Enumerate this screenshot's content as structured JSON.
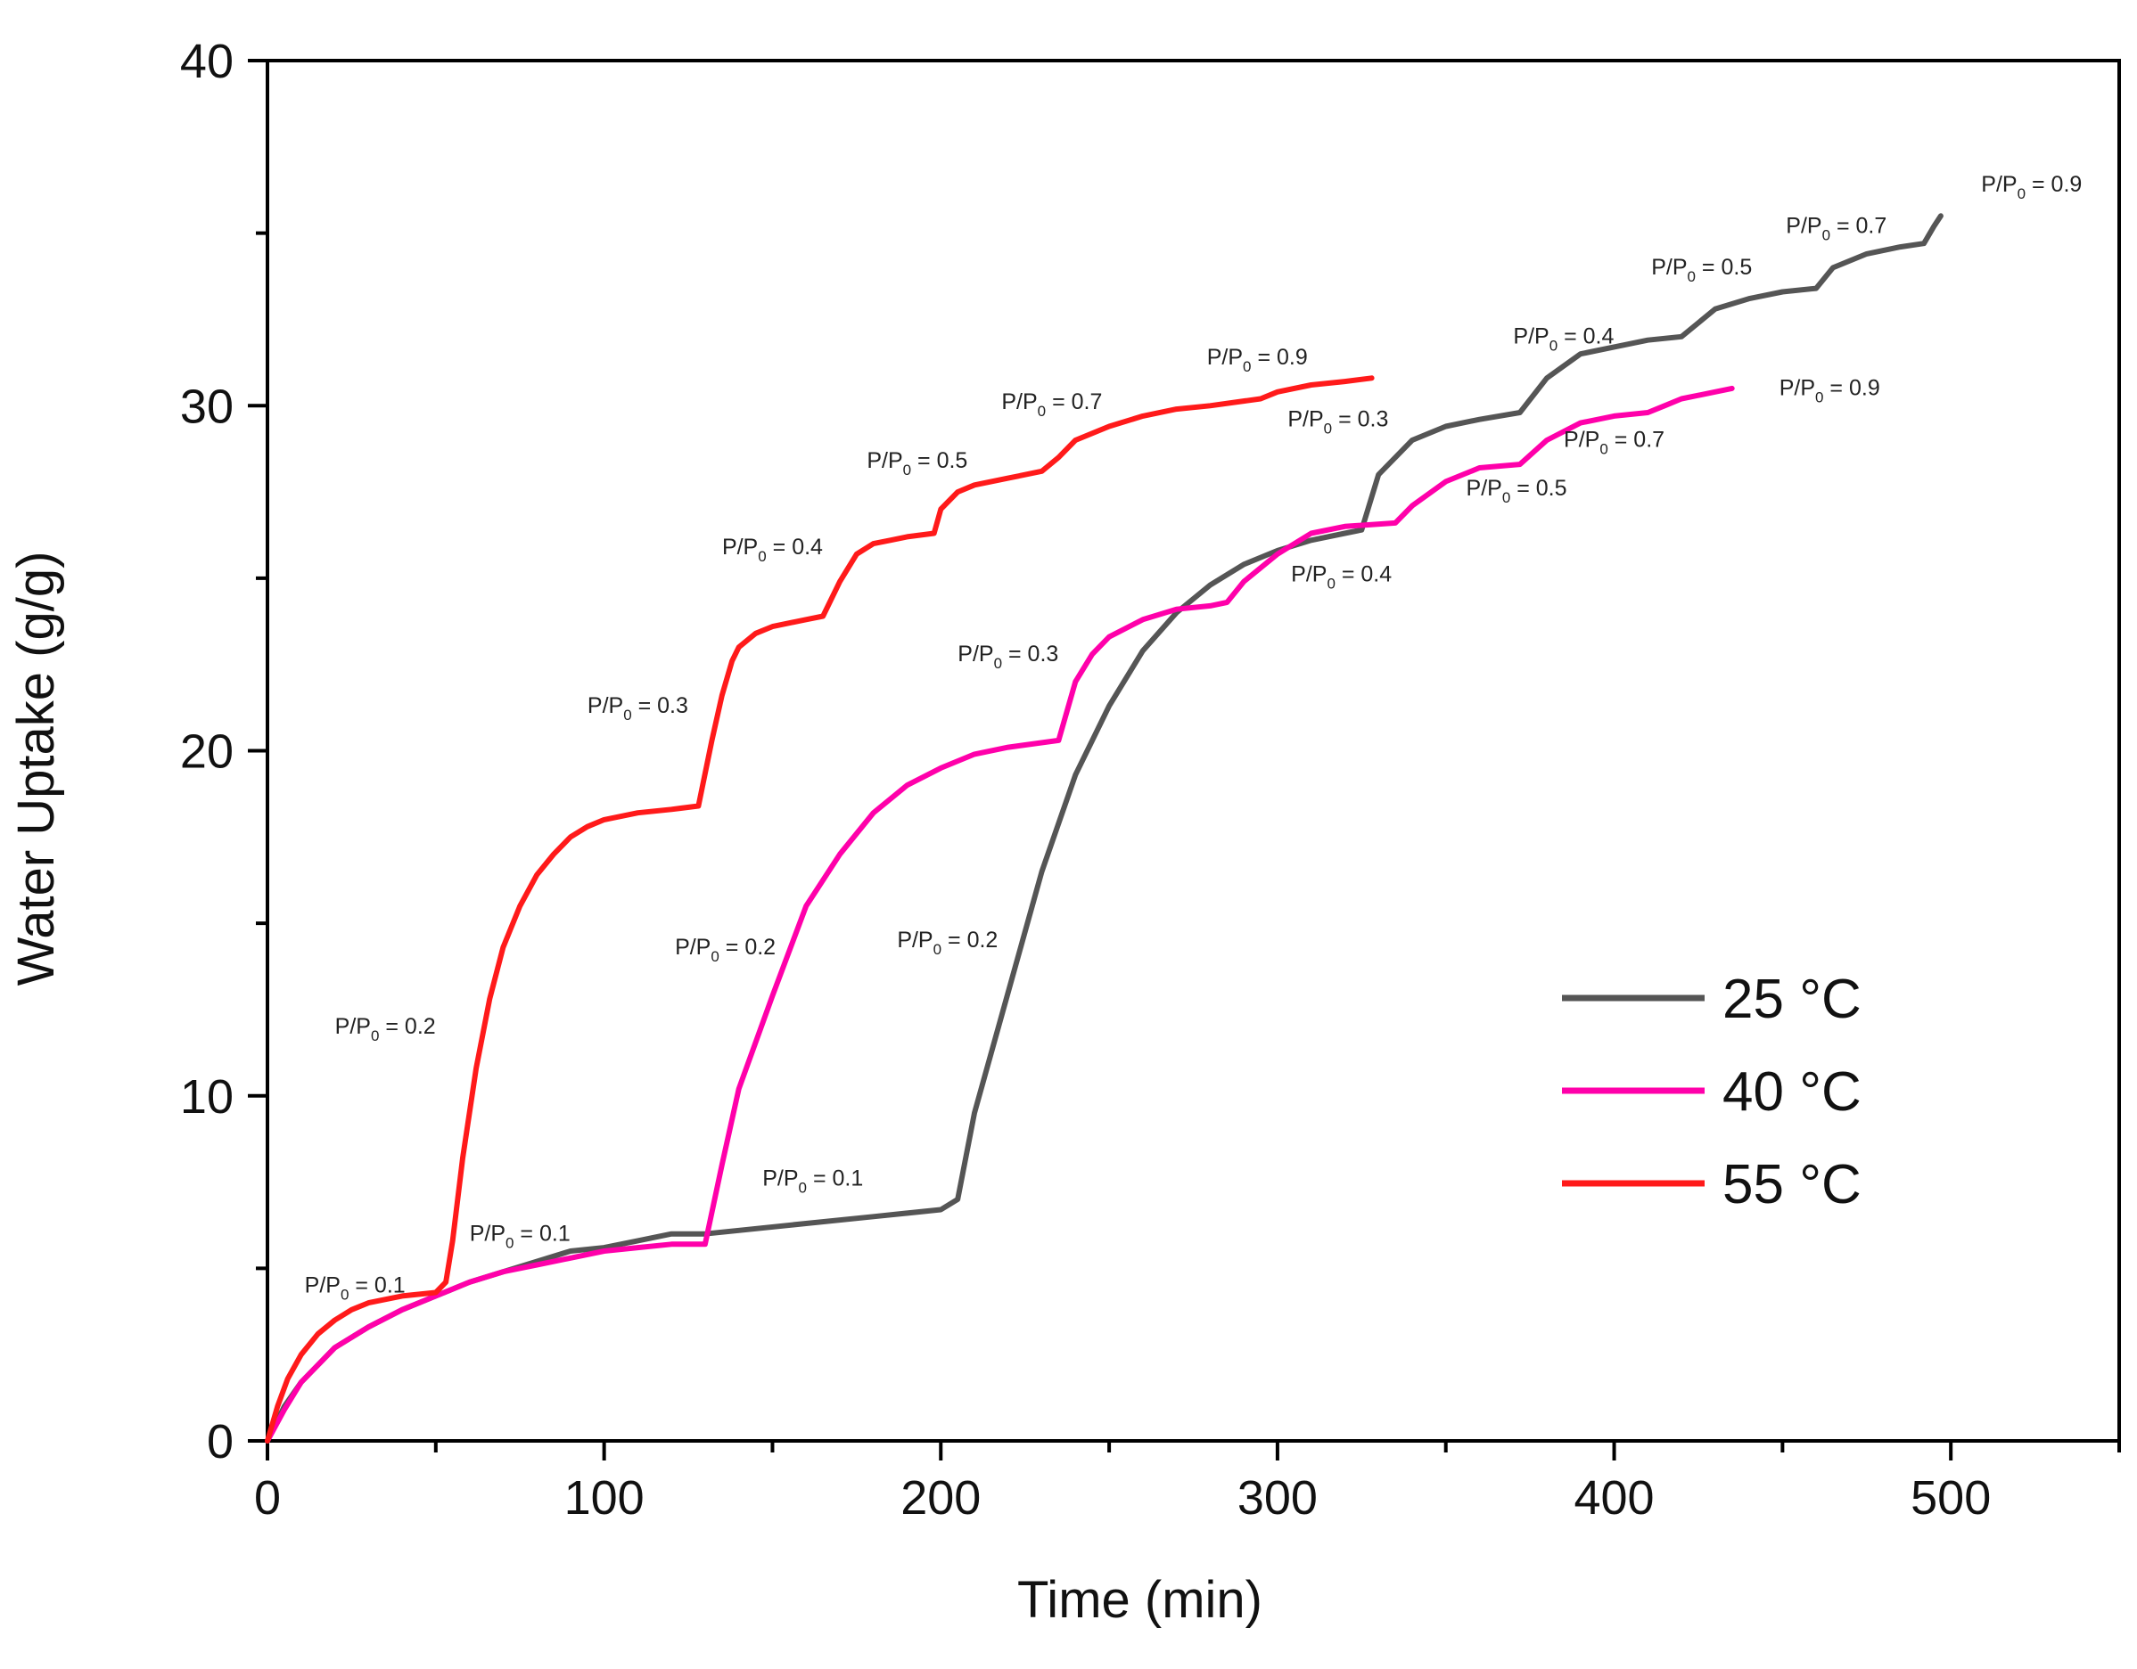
{
  "chart_data": {
    "type": "line",
    "title": "",
    "xlabel": "Time (min)",
    "ylabel": "Water Uptake (g/g)",
    "xlim": [
      0,
      550
    ],
    "ylim": [
      0,
      40
    ],
    "xticks": [
      0,
      100,
      200,
      300,
      400,
      500
    ],
    "yticks": [
      0,
      10,
      20,
      30,
      40
    ],
    "grid": false,
    "legend_position": "bottom-right",
    "series": [
      {
        "name": "25 °C",
        "color": "#555555",
        "x": [
          0,
          5,
          10,
          20,
          30,
          40,
          50,
          60,
          70,
          80,
          90,
          100,
          110,
          120,
          130,
          140,
          160,
          180,
          200,
          205,
          210,
          220,
          230,
          240,
          250,
          260,
          270,
          280,
          290,
          300,
          310,
          320,
          325,
          330,
          340,
          350,
          360,
          372,
          380,
          390,
          400,
          410,
          420,
          425,
          430,
          440,
          450,
          460,
          465,
          475,
          485,
          492,
          495,
          497
        ],
        "y": [
          0,
          1.0,
          1.7,
          2.7,
          3.3,
          3.8,
          4.2,
          4.6,
          4.9,
          5.2,
          5.5,
          5.6,
          5.8,
          6.0,
          6.0,
          6.1,
          6.3,
          6.5,
          6.7,
          7.0,
          9.5,
          13.0,
          16.5,
          19.3,
          21.3,
          22.9,
          24.0,
          24.8,
          25.4,
          25.8,
          26.1,
          26.3,
          26.4,
          28.0,
          29.0,
          29.4,
          29.6,
          29.8,
          30.8,
          31.5,
          31.7,
          31.9,
          32.0,
          32.4,
          32.8,
          33.1,
          33.3,
          33.4,
          34.0,
          34.4,
          34.6,
          34.7,
          35.2,
          35.5
        ]
      },
      {
        "name": "40 °C",
        "color": "#ff00aa",
        "x": [
          0,
          5,
          10,
          20,
          30,
          40,
          50,
          60,
          70,
          80,
          90,
          100,
          110,
          120,
          130,
          135,
          140,
          150,
          160,
          170,
          180,
          190,
          200,
          210,
          220,
          235,
          240,
          245,
          250,
          260,
          270,
          280,
          285,
          290,
          300,
          310,
          320,
          335,
          340,
          350,
          360,
          372,
          380,
          390,
          400,
          410,
          415,
          420,
          430,
          435
        ],
        "y": [
          0,
          0.9,
          1.7,
          2.7,
          3.3,
          3.8,
          4.2,
          4.6,
          4.9,
          5.1,
          5.3,
          5.5,
          5.6,
          5.7,
          5.7,
          8.0,
          10.2,
          12.9,
          15.5,
          17.0,
          18.2,
          19.0,
          19.5,
          19.9,
          20.1,
          20.3,
          22.0,
          22.8,
          23.3,
          23.8,
          24.1,
          24.2,
          24.3,
          24.9,
          25.7,
          26.3,
          26.5,
          26.6,
          27.1,
          27.8,
          28.2,
          28.3,
          29.0,
          29.5,
          29.7,
          29.8,
          30.0,
          30.2,
          30.4,
          30.5
        ]
      },
      {
        "name": "55 °C",
        "color": "#ff1a1a",
        "x": [
          0,
          3,
          6,
          10,
          15,
          20,
          25,
          30,
          40,
          50,
          53,
          55,
          58,
          62,
          66,
          70,
          75,
          80,
          85,
          90,
          95,
          100,
          110,
          120,
          128,
          132,
          135,
          138,
          140,
          145,
          150,
          160,
          165,
          170,
          175,
          180,
          185,
          190,
          198,
          200,
          205,
          210,
          220,
          230,
          235,
          240,
          250,
          260,
          270,
          280,
          295,
          300,
          310,
          320,
          328
        ],
        "y": [
          0,
          1.0,
          1.8,
          2.5,
          3.1,
          3.5,
          3.8,
          4.0,
          4.2,
          4.3,
          4.6,
          5.8,
          8.2,
          10.8,
          12.8,
          14.3,
          15.5,
          16.4,
          17.0,
          17.5,
          17.8,
          18.0,
          18.2,
          18.3,
          18.4,
          20.3,
          21.6,
          22.6,
          23.0,
          23.4,
          23.6,
          23.8,
          23.9,
          24.9,
          25.7,
          26.0,
          26.1,
          26.2,
          26.3,
          27.0,
          27.5,
          27.7,
          27.9,
          28.1,
          28.5,
          29.0,
          29.4,
          29.7,
          29.9,
          30.0,
          30.2,
          30.4,
          30.6,
          30.7,
          30.8
        ]
      }
    ],
    "annotations": [
      {
        "text": "P/P",
        "sub": "0",
        "rest": " = 0.1",
        "x": 26,
        "y": 4.3,
        "series": "55 °C"
      },
      {
        "text": "P/P",
        "sub": "0",
        "rest": " = 0.2",
        "x": 35,
        "y": 11.8,
        "series": "55 °C"
      },
      {
        "text": "P/P",
        "sub": "0",
        "rest": " = 0.3",
        "x": 110,
        "y": 21.1,
        "series": "55 °C"
      },
      {
        "text": "P/P",
        "sub": "0",
        "rest": " = 0.4",
        "x": 150,
        "y": 25.7,
        "series": "55 °C"
      },
      {
        "text": "P/P",
        "sub": "0",
        "rest": " = 0.5",
        "x": 193,
        "y": 28.2,
        "series": "55 °C"
      },
      {
        "text": "P/P",
        "sub": "0",
        "rest": " = 0.7",
        "x": 233,
        "y": 29.9,
        "series": "55 °C"
      },
      {
        "text": "P/P",
        "sub": "0",
        "rest": " = 0.9",
        "x": 294,
        "y": 31.2,
        "series": "55 °C"
      },
      {
        "text": "P/P",
        "sub": "0",
        "rest": " = 0.1",
        "x": 75,
        "y": 5.8,
        "series": "40 °C"
      },
      {
        "text": "P/P",
        "sub": "0",
        "rest": " = 0.2",
        "x": 136,
        "y": 14.1,
        "series": "40 °C"
      },
      {
        "text": "P/P",
        "sub": "0",
        "rest": " = 0.3",
        "x": 220,
        "y": 22.6,
        "series": "40 °C"
      },
      {
        "text": "P/P",
        "sub": "0",
        "rest": " = 0.4",
        "x": 319,
        "y": 24.9,
        "series": "40 °C"
      },
      {
        "text": "P/P",
        "sub": "0",
        "rest": " = 0.5",
        "x": 371,
        "y": 27.4,
        "series": "40 °C"
      },
      {
        "text": "P/P",
        "sub": "0",
        "rest": " = 0.7",
        "x": 400,
        "y": 28.8,
        "series": "40 °C"
      },
      {
        "text": "P/P",
        "sub": "0",
        "rest": " = 0.9",
        "x": 464,
        "y": 30.3,
        "series": "40 °C"
      },
      {
        "text": "P/P",
        "sub": "0",
        "rest": " = 0.1",
        "x": 162,
        "y": 7.4,
        "series": "25 °C"
      },
      {
        "text": "P/P",
        "sub": "0",
        "rest": " = 0.2",
        "x": 202,
        "y": 14.3,
        "series": "25 °C"
      },
      {
        "text": "P/P",
        "sub": "0",
        "rest": " = 0.3",
        "x": 318,
        "y": 29.4,
        "series": "25 °C"
      },
      {
        "text": "P/P",
        "sub": "0",
        "rest": " = 0.4",
        "x": 385,
        "y": 31.8,
        "series": "25 °C"
      },
      {
        "text": "P/P",
        "sub": "0",
        "rest": " = 0.5",
        "x": 426,
        "y": 33.8,
        "series": "25 °C"
      },
      {
        "text": "P/P",
        "sub": "0",
        "rest": " = 0.7",
        "x": 466,
        "y": 35.0,
        "series": "25 °C"
      },
      {
        "text": "P/P",
        "sub": "0",
        "rest": " = 0.9",
        "x": 524,
        "y": 36.2,
        "series": "25 °C"
      }
    ]
  }
}
